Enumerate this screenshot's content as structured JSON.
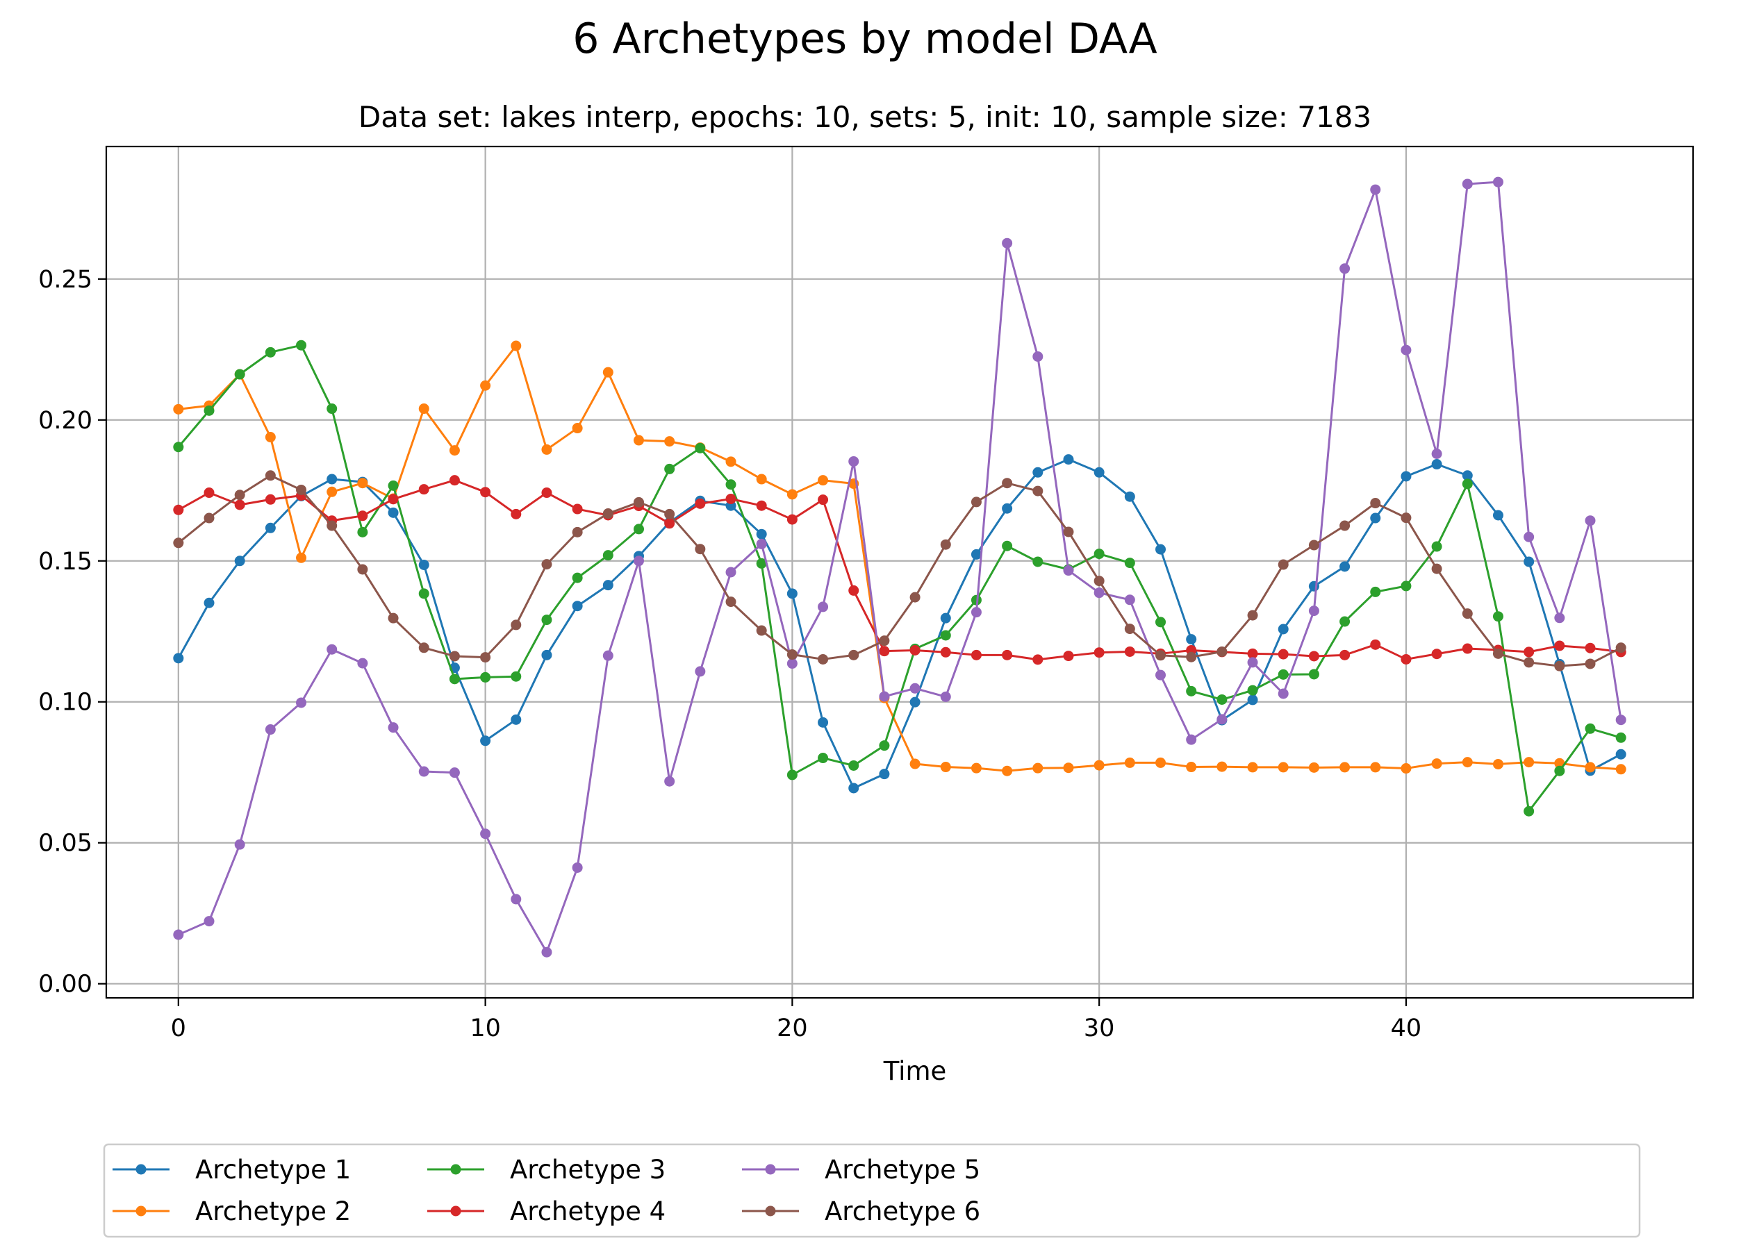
{
  "chart_data": {
    "type": "line",
    "title": "6 Archetypes by model DAA",
    "subtitle": "Data set: lakes interp, epochs: 10, sets: 5, init: 10, sample size: 7183",
    "xlabel": "Time",
    "ylabel": "",
    "xlim": [
      -2.35,
      49.35
    ],
    "ylim": [
      -0.005,
      0.297
    ],
    "xticks": [
      0,
      10,
      20,
      30,
      40
    ],
    "xtick_labels": [
      "0",
      "10",
      "20",
      "30",
      "40"
    ],
    "yticks": [
      0.0,
      0.05,
      0.1,
      0.15,
      0.2,
      0.25
    ],
    "ytick_labels": [
      "0.00",
      "0.05",
      "0.10",
      "0.15",
      "0.20",
      "0.25"
    ],
    "grid": true,
    "legend_placement": "bottom-center",
    "legend_columns": 5,
    "series": [
      {
        "name": "Archetype 1",
        "color": "#1f77b4",
        "values": [
          0.1155,
          0.1351,
          0.15,
          0.1617,
          0.173,
          0.179,
          0.178,
          0.1671,
          0.1486,
          0.1121,
          0.0862,
          0.0937,
          0.1166,
          0.134,
          0.1414,
          0.1517,
          0.1637,
          0.1713,
          0.1696,
          0.1595,
          0.1384,
          0.0927,
          0.0694,
          0.0744,
          0.0999,
          0.1297,
          0.1523,
          0.1686,
          0.1814,
          0.186,
          0.1814,
          0.1728,
          0.1541,
          0.1222,
          0.0935,
          0.1007,
          0.1258,
          0.141,
          0.148,
          0.1652,
          0.18,
          0.1843,
          0.1803,
          0.1662,
          0.1497,
          0.1134,
          0.0756,
          0.0814
        ]
      },
      {
        "name": "Archetype 2",
        "color": "#ff7f0e",
        "values": [
          0.2038,
          0.2051,
          0.2162,
          0.1939,
          0.1511,
          0.1745,
          0.1776,
          0.1721,
          0.204,
          0.1892,
          0.2122,
          0.2263,
          0.1895,
          0.1971,
          0.2169,
          0.1928,
          0.1924,
          0.1902,
          0.1852,
          0.179,
          0.1736,
          0.1786,
          0.1774,
          0.1014,
          0.078,
          0.0769,
          0.0765,
          0.0755,
          0.0765,
          0.0766,
          0.0775,
          0.0784,
          0.0784,
          0.0769,
          0.077,
          0.0768,
          0.0768,
          0.0767,
          0.0768,
          0.0768,
          0.0764,
          0.0781,
          0.0786,
          0.0779,
          0.0786,
          0.0782,
          0.0768,
          0.0761
        ]
      },
      {
        "name": "Archetype 3",
        "color": "#2ca02c",
        "values": [
          0.1904,
          0.2033,
          0.2162,
          0.224,
          0.2265,
          0.204,
          0.1602,
          0.1767,
          0.1384,
          0.1081,
          0.1087,
          0.109,
          0.1291,
          0.144,
          0.152,
          0.1613,
          0.1826,
          0.19,
          0.1771,
          0.1491,
          0.0741,
          0.0801,
          0.0774,
          0.0845,
          0.1188,
          0.1236,
          0.1361,
          0.1553,
          0.1497,
          0.147,
          0.1525,
          0.1493,
          0.1283,
          0.1038,
          0.1008,
          0.1041,
          0.1097,
          0.1098,
          0.1285,
          0.139,
          0.1411,
          0.1551,
          0.1773,
          0.1303,
          0.0612,
          0.0755,
          0.0905,
          0.0873
        ]
      },
      {
        "name": "Archetype 4",
        "color": "#d62728",
        "values": [
          0.1681,
          0.1742,
          0.1699,
          0.1718,
          0.1732,
          0.1643,
          0.166,
          0.1719,
          0.1754,
          0.1786,
          0.1744,
          0.1666,
          0.1742,
          0.1684,
          0.1662,
          0.1695,
          0.1633,
          0.1703,
          0.172,
          0.1696,
          0.1647,
          0.1717,
          0.1395,
          0.118,
          0.1183,
          0.1176,
          0.1166,
          0.1166,
          0.115,
          0.1163,
          0.1175,
          0.1178,
          0.1171,
          0.1183,
          0.1177,
          0.1171,
          0.1169,
          0.1162,
          0.1166,
          0.1203,
          0.1151,
          0.117,
          0.1189,
          0.1184,
          0.1177,
          0.1199,
          0.1191,
          0.1177
        ]
      },
      {
        "name": "Archetype 5",
        "color": "#9467bd",
        "values": [
          0.0174,
          0.0222,
          0.0494,
          0.0902,
          0.0997,
          0.1186,
          0.1137,
          0.0909,
          0.0753,
          0.0749,
          0.0532,
          0.03,
          0.0112,
          0.0412,
          0.1164,
          0.15,
          0.0718,
          0.1108,
          0.146,
          0.156,
          0.1136,
          0.1337,
          0.1853,
          0.1019,
          0.1048,
          0.1018,
          0.1318,
          0.2627,
          0.2225,
          0.1466,
          0.1387,
          0.1362,
          0.1095,
          0.0866,
          0.0938,
          0.114,
          0.1029,
          0.1323,
          0.2537,
          0.2817,
          0.2248,
          0.188,
          0.2837,
          0.2844,
          0.1585,
          0.1298,
          0.1643,
          0.0936
        ]
      },
      {
        "name": "Archetype 6",
        "color": "#8c564b",
        "values": [
          0.1564,
          0.1652,
          0.1734,
          0.1803,
          0.1752,
          0.1625,
          0.147,
          0.1297,
          0.1192,
          0.1162,
          0.1158,
          0.1273,
          0.1488,
          0.1602,
          0.1668,
          0.1708,
          0.1666,
          0.1542,
          0.1355,
          0.1253,
          0.1168,
          0.1151,
          0.1166,
          0.1217,
          0.1371,
          0.1558,
          0.1709,
          0.1776,
          0.1748,
          0.1603,
          0.1429,
          0.1259,
          0.1165,
          0.1159,
          0.1178,
          0.1307,
          0.1487,
          0.1556,
          0.1625,
          0.1705,
          0.1653,
          0.1472,
          0.1313,
          0.1171,
          0.114,
          0.1127,
          0.1135,
          0.1192
        ]
      }
    ]
  }
}
